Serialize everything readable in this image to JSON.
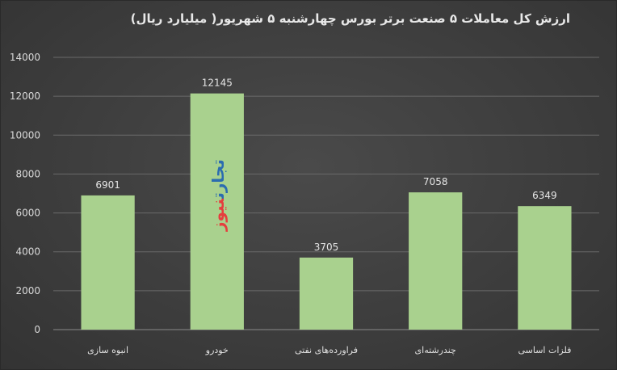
{
  "chart_data": {
    "type": "bar",
    "title": "ارزش کل معاملات ۵ صنعت برتر بورس چهارشنبه ۵ شهریور( میلیارد ریال)",
    "categories": [
      "انبوه سازی",
      "خودرو",
      "فراورده‌های نفتی",
      "چندرشته‌ای",
      "فلزات اساسی"
    ],
    "values": [
      6901,
      12145,
      3705,
      7058,
      6349
    ],
    "data_labels": [
      "6901",
      "12145",
      "3705",
      "7058",
      "6349"
    ],
    "ylim": [
      0,
      14000
    ],
    "yticks": [
      0,
      2000,
      4000,
      6000,
      8000,
      10000,
      12000,
      14000
    ],
    "grid": true,
    "bar_color": "#a9d18e",
    "grid_color": "#6a6a6a"
  },
  "watermark": {
    "part1": "تجارت",
    "part2": "نیوز"
  }
}
